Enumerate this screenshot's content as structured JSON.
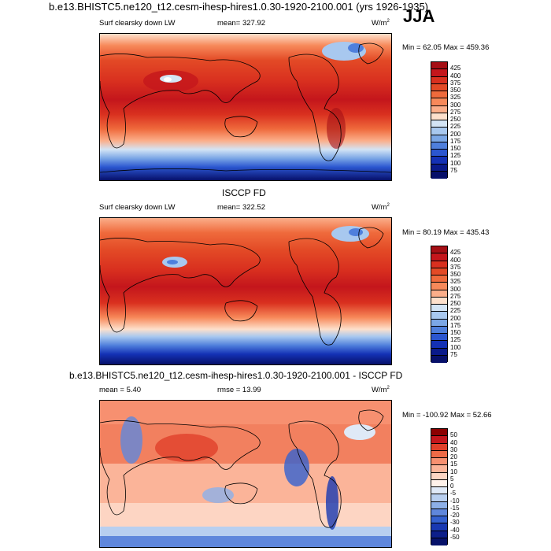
{
  "header": {
    "title": "b.e13.BHISTC5.ne120_t12.cesm-ihesp-hires1.0.30-1920-2100.001 (yrs 1926-1935)",
    "season": "JJA"
  },
  "panels": [
    {
      "variable": "Surf clearsky down LW",
      "mean_text": "mean= 327.92",
      "units_base": "W/m",
      "units_exp": "2",
      "minmax_text": "Min =  62.05 Max = 459.36",
      "levels": [
        "425",
        "400",
        "375",
        "350",
        "325",
        "300",
        "275",
        "250",
        "225",
        "200",
        "175",
        "150",
        "125",
        "100",
        "75"
      ]
    },
    {
      "section_title": "ISCCP FD",
      "variable": "Surf clearsky down LW",
      "mean_text": "mean= 322.52",
      "units_base": "W/m",
      "units_exp": "2",
      "minmax_text": "Min =  80.19 Max = 435.43",
      "levels": [
        "425",
        "400",
        "375",
        "350",
        "325",
        "300",
        "275",
        "250",
        "225",
        "200",
        "175",
        "150",
        "125",
        "100",
        "75"
      ]
    },
    {
      "section_title": "b.e13.BHISTC5.ne120_t12.cesm-ihesp-hires1.0.30-1920-2100.001 - ISCCP FD",
      "mean_text": "mean =  5.40",
      "rmse_text": "rmse =  13.99",
      "units_base": "W/m",
      "units_exp": "2",
      "minmax_text": "Min = -100.92 Max =  52.66",
      "levels": [
        "50",
        "40",
        "30",
        "20",
        "15",
        "10",
        "5",
        "0",
        "-5",
        "-10",
        "-15",
        "-20",
        "-30",
        "-40",
        "-50"
      ]
    }
  ],
  "colors": {
    "abs_scale": [
      "#a50f15",
      "#c4161c",
      "#d9301f",
      "#e34a26",
      "#ef6a3c",
      "#f7895a",
      "#fbae8a",
      "#fde0cc",
      "#d3e4f5",
      "#a8c8ef",
      "#7ba7e6",
      "#4f7fdc",
      "#2b56d0",
      "#1431b5",
      "#0a1a8a",
      "#07106a"
    ],
    "diff_scale": [
      "#8b0000",
      "#c4161c",
      "#e0402a",
      "#ee6a46",
      "#f79070",
      "#fbb499",
      "#fdd5c3",
      "#fff2ea",
      "#dfe9f7",
      "#b8cff0",
      "#8db0e8",
      "#5f87dc",
      "#3461d0",
      "#1838b2",
      "#0d1f8a",
      "#07126a"
    ]
  }
}
